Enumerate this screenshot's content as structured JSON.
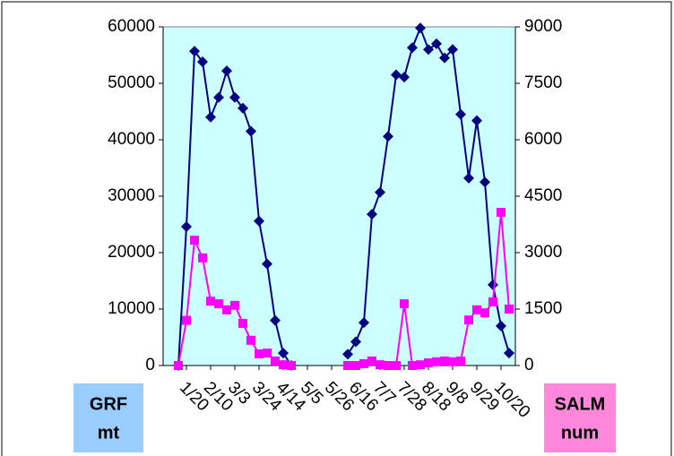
{
  "chart_data": {
    "type": "line",
    "categories": [
      null,
      "1/20",
      null,
      null,
      "2/10",
      null,
      null,
      "3/3",
      null,
      null,
      "3/24",
      null,
      null,
      "4/14",
      null,
      null,
      "5/5",
      null,
      null,
      "5/26",
      null,
      null,
      "6/16",
      null,
      null,
      "7/7",
      null,
      null,
      "7/28",
      null,
      null,
      "8/18",
      null,
      null,
      "9/8",
      null,
      null,
      "9/29",
      null,
      null,
      "10/20",
      null
    ],
    "series": [
      {
        "color": "#000080",
        "marker": "diamond",
        "values": [
          0,
          24600,
          55700,
          53800,
          44000,
          47500,
          52200,
          47500,
          45600,
          41500,
          25600,
          18000,
          8000,
          2200,
          0,
          null,
          null,
          null,
          null,
          null,
          null,
          2000,
          4200,
          7600,
          26800,
          30700,
          40600,
          51500,
          51100,
          56300,
          59800,
          56000,
          57000,
          54500,
          56000,
          44500,
          33200,
          43400,
          32500,
          14300,
          7000,
          2200
        ]
      },
      {
        "color": "#ff00ff",
        "marker": "square",
        "axis": "y2",
        "values": [
          0,
          1200,
          3330,
          2860,
          1710,
          1640,
          1480,
          1600,
          1120,
          670,
          310,
          330,
          120,
          20,
          0,
          null,
          null,
          null,
          null,
          null,
          null,
          0,
          0,
          50,
          120,
          20,
          0,
          0,
          1640,
          0,
          20,
          70,
          100,
          120,
          100,
          120,
          1210,
          1480,
          1400,
          1690,
          4070,
          1500
        ]
      }
    ],
    "ylim": [
      0,
      60000
    ],
    "yticks": [
      0,
      10000,
      20000,
      30000,
      40000,
      50000,
      60000
    ],
    "y2lim": [
      0,
      9000
    ],
    "y2ticks": [
      0,
      1500,
      3000,
      4500,
      6000,
      7500,
      9000
    ],
    "ylabel": [
      "GRF",
      "mt"
    ],
    "ylabel_color": "#99ccff",
    "y2label": [
      "SALM",
      "num"
    ],
    "y2label_color": "#ff88dd",
    "plot_background": "#ccffff",
    "grid": false
  }
}
